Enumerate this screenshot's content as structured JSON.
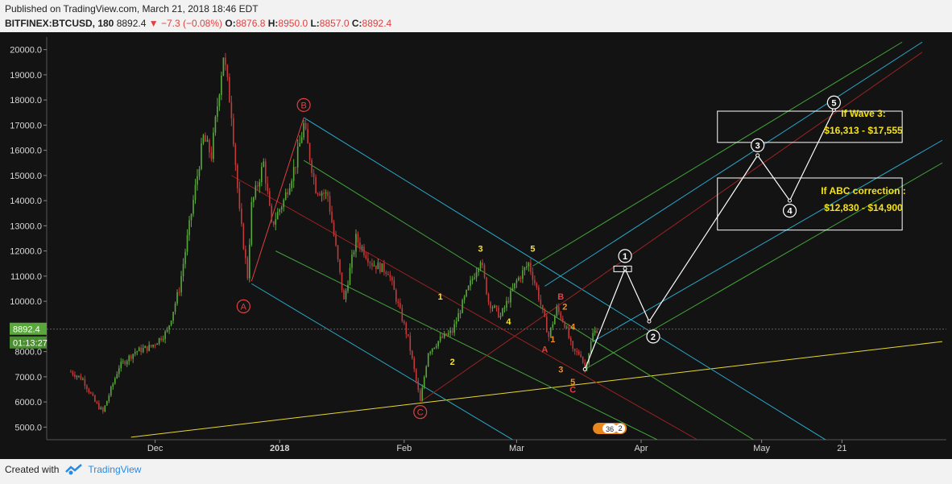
{
  "header": {
    "published": "Published on TradingView.com, March 21, 2018 18:46 EDT",
    "symbol": "BITFINEX:BTCUSD, 180",
    "last": "8892.4",
    "change": "▼ −7.3 (−0.08%)",
    "o_label": "O:",
    "o_val": "8876.8",
    "h_label": "H:",
    "h_val": "8950.0",
    "l_label": "L:",
    "l_val": "8857.0",
    "c_label": "C:",
    "c_val": "8892.4"
  },
  "footer": {
    "created_with": "Created with",
    "brand": "TradingView"
  },
  "colors": {
    "background": "#131313",
    "up": "#5aa83c",
    "down": "#c23a3a",
    "wave_yellow": "#f2e23a",
    "abc_red": "#e04040",
    "orange": "#f28c28",
    "cyan": "#29a8c9",
    "green": "#43a43a",
    "darkred": "#9a2222",
    "price_tag": "#5aa83c"
  },
  "chart_data": {
    "type": "candlestick",
    "y_ticks": [
      "20000.0",
      "19000.0",
      "18000.0",
      "17000.0",
      "16000.0",
      "15000.0",
      "14000.0",
      "13000.0",
      "12000.0",
      "11000.0",
      "10000.0",
      "9000.0",
      "8000.0",
      "7000.0",
      "6000.0",
      "5000.0"
    ],
    "x_ticks": [
      "Dec",
      "2018",
      "Feb",
      "Mar",
      "Apr",
      "May",
      "21"
    ],
    "ylim": [
      4500,
      20500
    ],
    "current_price_label": "8892.4",
    "countdown_label": "01:13:27",
    "price_anchors": [
      {
        "date": "2017-11-10",
        "price": 7200
      },
      {
        "date": "2017-11-13",
        "price": 6900
      },
      {
        "date": "2017-11-16",
        "price": 6000
      },
      {
        "date": "2017-11-18",
        "price": 5600
      },
      {
        "date": "2017-11-22",
        "price": 7400
      },
      {
        "date": "2017-11-26",
        "price": 8000
      },
      {
        "date": "2017-11-30",
        "price": 8200
      },
      {
        "date": "2017-12-04",
        "price": 8800
      },
      {
        "date": "2017-12-07",
        "price": 10500
      },
      {
        "date": "2017-12-10",
        "price": 13500
      },
      {
        "date": "2017-12-13",
        "price": 16500
      },
      {
        "date": "2017-12-15",
        "price": 15800
      },
      {
        "date": "2017-12-18",
        "price": 19800
      },
      {
        "date": "2017-12-20",
        "price": 17500
      },
      {
        "date": "2017-12-22",
        "price": 13500
      },
      {
        "date": "2017-12-24",
        "price": 11000
      },
      {
        "date": "2017-12-25",
        "price": 13800
      },
      {
        "date": "2017-12-28",
        "price": 15500
      },
      {
        "date": "2017-12-30",
        "price": 13000
      },
      {
        "date": "2018-01-02",
        "price": 14000
      },
      {
        "date": "2018-01-05",
        "price": 15500
      },
      {
        "date": "2018-01-07",
        "price": 17000
      },
      {
        "date": "2018-01-10",
        "price": 14500
      },
      {
        "date": "2018-01-13",
        "price": 14200
      },
      {
        "date": "2018-01-17",
        "price": 10000
      },
      {
        "date": "2018-01-20",
        "price": 12500
      },
      {
        "date": "2018-01-24",
        "price": 11500
      },
      {
        "date": "2018-01-28",
        "price": 11200
      },
      {
        "date": "2018-02-02",
        "price": 8500
      },
      {
        "date": "2018-02-05",
        "price": 6000
      },
      {
        "date": "2018-02-07",
        "price": 8000
      },
      {
        "date": "2018-02-10",
        "price": 8500
      },
      {
        "date": "2018-02-13",
        "price": 8800
      },
      {
        "date": "2018-02-16",
        "price": 10100
      },
      {
        "date": "2018-02-20",
        "price": 11700
      },
      {
        "date": "2018-02-22",
        "price": 10000
      },
      {
        "date": "2018-02-25",
        "price": 9400
      },
      {
        "date": "2018-03-01",
        "price": 10800
      },
      {
        "date": "2018-03-04",
        "price": 11500
      },
      {
        "date": "2018-03-06",
        "price": 10500
      },
      {
        "date": "2018-03-09",
        "price": 8600
      },
      {
        "date": "2018-03-11",
        "price": 9700
      },
      {
        "date": "2018-03-13",
        "price": 9100
      },
      {
        "date": "2018-03-15",
        "price": 8000
      },
      {
        "date": "2018-03-17",
        "price": 7900
      },
      {
        "date": "2018-03-18",
        "price": 7300
      },
      {
        "date": "2018-03-20",
        "price": 8700
      },
      {
        "date": "2018-03-21",
        "price": 8892.4
      }
    ],
    "projection_path": [
      {
        "date": "2018-03-18",
        "price": 7300
      },
      {
        "date": "2018-03-28",
        "price": 11300
      },
      {
        "date": "2018-04-03",
        "price": 9200
      },
      {
        "date": "2018-04-30",
        "price": 15800
      },
      {
        "date": "2018-05-08",
        "price": 14000
      },
      {
        "date": "2018-05-19",
        "price": 17600
      }
    ],
    "zones": [
      {
        "name": "wave3",
        "date_from": "2018-04-20",
        "date_to": "2018-06-05",
        "price_from": 16313,
        "price_to": 17555,
        "label_title": "If Wave 3:",
        "label_range": "$16,313 - $17,555"
      },
      {
        "name": "abc",
        "date_from": "2018-04-20",
        "date_to": "2018-06-05",
        "price_from": 12830,
        "price_to": 14900,
        "label_title": "If ABC correction :",
        "label_range": "$12,830 - $14,900"
      }
    ],
    "wave_labels": [
      {
        "text": "B",
        "date": "2018-01-07",
        "price": 17800,
        "style": "circle-red"
      },
      {
        "text": "A",
        "date": "2017-12-23",
        "price": 9800,
        "style": "circle-red"
      },
      {
        "text": "C",
        "date": "2018-02-05",
        "price": 5600,
        "style": "circle-red"
      },
      {
        "text": "1",
        "date": "2018-02-10",
        "price": 10200,
        "style": "yellow"
      },
      {
        "text": "2",
        "date": "2018-02-13",
        "price": 7600,
        "style": "yellow"
      },
      {
        "text": "3",
        "date": "2018-02-20",
        "price": 12100,
        "style": "yellow"
      },
      {
        "text": "4",
        "date": "2018-02-27",
        "price": 9200,
        "style": "yellow"
      },
      {
        "text": "5",
        "date": "2018-03-05",
        "price": 12100,
        "style": "yellow"
      },
      {
        "text": "B",
        "date": "2018-03-12",
        "price": 10200,
        "style": "red"
      },
      {
        "text": "2",
        "date": "2018-03-13",
        "price": 9800,
        "style": "orange"
      },
      {
        "text": "A",
        "date": "2018-03-08",
        "price": 8100,
        "style": "red"
      },
      {
        "text": "1",
        "date": "2018-03-10",
        "price": 8500,
        "style": "orange"
      },
      {
        "text": "4",
        "date": "2018-03-15",
        "price": 9000,
        "style": "orange"
      },
      {
        "text": "3",
        "date": "2018-03-12",
        "price": 7300,
        "style": "orange"
      },
      {
        "text": "5",
        "date": "2018-03-15",
        "price": 6800,
        "style": "orange"
      },
      {
        "text": "C",
        "date": "2018-03-15",
        "price": 6500,
        "style": "red"
      },
      {
        "text": "1",
        "date": "2018-03-28",
        "price": 11800,
        "style": "circle-white"
      },
      {
        "text": "2",
        "date": "2018-04-04",
        "price": 8600,
        "style": "circle-white"
      },
      {
        "text": "3",
        "date": "2018-04-30",
        "price": 16200,
        "style": "circle-white"
      },
      {
        "text": "4",
        "date": "2018-05-08",
        "price": 13600,
        "style": "circle-white"
      },
      {
        "text": "5",
        "date": "2018-05-19",
        "price": 17900,
        "style": "circle-white"
      }
    ],
    "trend_lines": [
      {
        "color": "yellow",
        "from": {
          "date": "2017-11-25",
          "price": 4600
        },
        "to": {
          "date": "2018-06-15",
          "price": 8400
        }
      },
      {
        "color": "cyan",
        "from": {
          "date": "2018-01-07",
          "price": 17300
        },
        "to": {
          "date": "2018-05-24",
          "price": 3800
        }
      },
      {
        "color": "cyan",
        "from": {
          "date": "2017-12-25",
          "price": 10700
        },
        "to": {
          "date": "2018-02-28",
          "price": 4500
        }
      },
      {
        "color": "darkred",
        "from": {
          "date": "2017-12-20",
          "price": 15000
        },
        "to": {
          "date": "2018-04-15",
          "price": 4500
        }
      },
      {
        "color": "green",
        "from": {
          "date": "2018-01-07",
          "price": 15600
        },
        "to": {
          "date": "2018-05-05",
          "price": 3900
        }
      },
      {
        "color": "green",
        "from": {
          "date": "2017-12-31",
          "price": 12000
        },
        "to": {
          "date": "2018-04-05",
          "price": 4500
        }
      },
      {
        "color": "darkred",
        "from": {
          "date": "2018-02-05",
          "price": 6000
        },
        "to": {
          "date": "2018-06-10",
          "price": 19900
        }
      },
      {
        "color": "green",
        "from": {
          "date": "2018-03-05",
          "price": 11400
        },
        "to": {
          "date": "2018-06-05",
          "price": 20300
        }
      },
      {
        "color": "cyan",
        "from": {
          "date": "2018-03-08",
          "price": 10600
        },
        "to": {
          "date": "2018-06-10",
          "price": 20300
        }
      },
      {
        "color": "cyan",
        "from": {
          "date": "2018-03-20",
          "price": 8400
        },
        "to": {
          "date": "2018-06-15",
          "price": 16400
        }
      },
      {
        "color": "green",
        "from": {
          "date": "2018-03-18",
          "price": 7300
        },
        "to": {
          "date": "2018-06-15",
          "price": 15500
        }
      },
      {
        "color": "red",
        "from": {
          "date": "2017-12-25",
          "price": 10800
        },
        "to": {
          "date": "2018-01-07",
          "price": 17300
        }
      }
    ],
    "badge_labels": [
      "36",
      "2"
    ],
    "grid": false
  }
}
